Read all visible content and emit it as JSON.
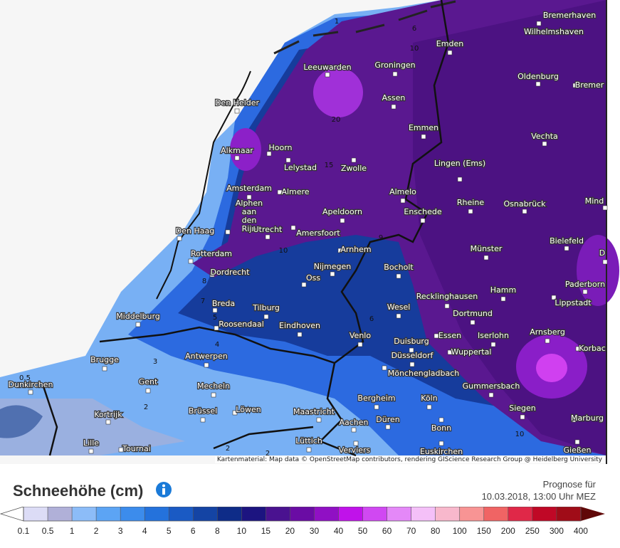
{
  "map": {
    "cities": [
      "Bremerhaven",
      "Wilhelmshaven",
      "Emden",
      "Bremer",
      "Leeuwarden",
      "Groningen",
      "Oldenburg",
      "Den Helder",
      "Assen",
      "Emmen",
      "Vechta",
      "Alkmaar",
      "Hoorn",
      "Lelystad",
      "Zwolle",
      "Lingen (Ems)",
      "Amsterdam",
      "Almere",
      "Almelo",
      "Rheine",
      "Osnabrück",
      "Mind",
      "Alphen aan den Rijn",
      "Apeldoorn",
      "Enschede",
      "Den Haag",
      "Utrecht",
      "Amersfoort",
      "Bielefeld",
      "Arnhem",
      "Rotterdam",
      "Münster",
      "D",
      "Nijmegen",
      "Dordrecht",
      "Oss",
      "Bocholt",
      "Paderborn",
      "Hamm",
      "Recklinghausen",
      "Breda",
      "Tilburg",
      "Middelburg",
      "Wesel",
      "Dortmund",
      "Lippstadt",
      "Roosendaal",
      "Eindhoven",
      "Venlo",
      "Essen",
      "Iserlohn",
      "Arnsberg",
      "Duisburg",
      "Wuppertal",
      "Korbac",
      "Brugge",
      "Antwerpen",
      "Düsseldorf",
      "Mönchengladbach",
      "Dunkirchen",
      "Gent",
      "Mecheln",
      "Gummersbach",
      "Bergheim",
      "Köln",
      "Kortrijk",
      "Brüssel",
      "Löwen",
      "Maastricht",
      "Siegen",
      "Düren",
      "Aachen",
      "Marburg",
      "Bonn",
      "Lille",
      "Tournai",
      "Lüttich",
      "Verviers",
      "Euskirchen",
      "Gießen"
    ],
    "contour_labels": [
      "1",
      "6",
      "10",
      "20",
      "15",
      "10",
      "9",
      "8",
      "7",
      "6",
      "5",
      "4",
      "3",
      "2",
      "0.5",
      "2",
      "10",
      "2"
    ],
    "attribution": "Kartenmaterial: Map data © OpenStreetMap contributors, rendering GIScience Research Group @ Heidelberg University"
  },
  "title": "Schneehöhe (cm)",
  "forecast": {
    "line1": "Prognose für",
    "line2": "10.03.2018, 13:00 Uhr MEZ"
  },
  "legend": {
    "labels": [
      "0.1",
      "0.5",
      "1",
      "2",
      "3",
      "4",
      "5",
      "6",
      "8",
      "10",
      "15",
      "20",
      "30",
      "40",
      "50",
      "60",
      "70",
      "80",
      "100",
      "150",
      "200",
      "250",
      "300",
      "400"
    ],
    "low_color": "#ffffff",
    "colors": [
      "#dcdcf6",
      "#b0b0d8",
      "#8cbcf8",
      "#5ca4f4",
      "#3c8cec",
      "#2472dc",
      "#1a5ac4",
      "#1444a4",
      "#0e2c88",
      "#1c1480",
      "#4a1290",
      "#6a0ca4",
      "#9010c4",
      "#c012ea",
      "#d048f2",
      "#e488f8",
      "#f4c0f8",
      "#f8b8cc",
      "#f89494",
      "#f06464",
      "#e02848",
      "#c00826",
      "#a00c18"
    ],
    "high_color": "#600808"
  }
}
